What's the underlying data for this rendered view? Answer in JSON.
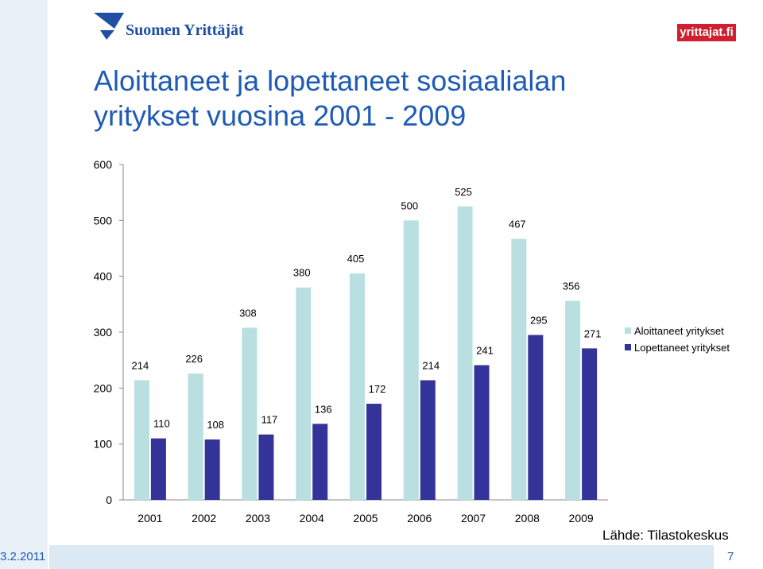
{
  "header": {
    "logo_left_text": "Suomen Yrittäjät",
    "logo_right_text": "yrittajat.fi"
  },
  "title": {
    "line1": "Aloittaneet ja lopettaneet sosiaalialan",
    "line2": "yritykset vuosina 2001 - 2009"
  },
  "footer": {
    "source": "Lähde: Tilastokeskus",
    "date": "3.2.2011",
    "page": "7"
  },
  "colors": {
    "title": "#1f5bb6",
    "series_started": "#b9dfe0",
    "series_ended": "#333399",
    "footer_bg": "#dbe9f5"
  },
  "chart_data": {
    "type": "bar",
    "categories": [
      "2001",
      "2002",
      "2003",
      "2004",
      "2005",
      "2006",
      "2007",
      "2008",
      "2009"
    ],
    "series": [
      {
        "name": "Aloittaneet yritykset",
        "values": [
          214,
          226,
          308,
          380,
          405,
          500,
          525,
          467,
          356
        ]
      },
      {
        "name": "Lopettaneet yritykset",
        "values": [
          110,
          108,
          117,
          136,
          172,
          214,
          241,
          295,
          271
        ]
      }
    ],
    "ylim": [
      0,
      600
    ],
    "yticks": [
      0,
      100,
      200,
      300,
      400,
      500,
      600
    ],
    "grid": false,
    "legend_position": "right"
  }
}
